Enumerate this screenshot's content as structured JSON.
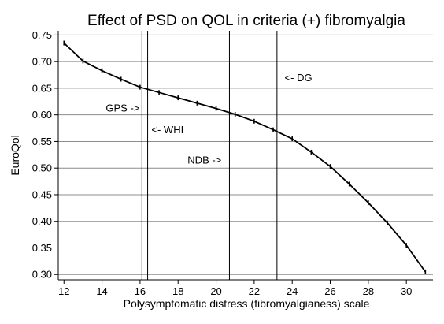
{
  "chart_data": {
    "type": "line",
    "title": "Effect of PSD on QOL in criteria (+) fibromyalgia",
    "xlabel": "Polysymptomatic distress (fibromyalgianess) scale",
    "ylabel": "EuroQol",
    "xlim": [
      11.7,
      31.4
    ],
    "ylim": [
      0.29,
      0.758
    ],
    "xticks": [
      12,
      14,
      16,
      18,
      20,
      22,
      24,
      26,
      28,
      30
    ],
    "xtick_labels": [
      "12",
      "14",
      "16",
      "18",
      "20",
      "22",
      "24",
      "26",
      "28",
      "30"
    ],
    "yticks": [
      0.3,
      0.35,
      0.4,
      0.45,
      0.5,
      0.55,
      0.6,
      0.65,
      0.7,
      0.75
    ],
    "ytick_labels": [
      "0.30",
      "0.35",
      "0.40",
      "0.45",
      "0.50",
      "0.55",
      "0.60",
      "0.65",
      "0.70",
      "0.75"
    ],
    "grid": "horizontal",
    "series": [
      {
        "x": [
          12,
          13,
          14,
          15,
          16,
          17,
          18,
          19,
          20,
          21,
          22,
          23,
          24,
          25,
          26,
          27,
          28,
          29,
          30,
          31
        ],
        "y": [
          0.735,
          0.701,
          0.683,
          0.667,
          0.652,
          0.642,
          0.632,
          0.622,
          0.612,
          0.601,
          0.588,
          0.572,
          0.555,
          0.53,
          0.503,
          0.47,
          0.435,
          0.397,
          0.355,
          0.305
        ],
        "color": "#000000"
      }
    ],
    "vlines": [
      {
        "x": 16.1,
        "label": "GPS ->",
        "label_x": 14.2,
        "label_y": 0.613,
        "anchor": "start"
      },
      {
        "x": 16.4,
        "label": "<- WHI",
        "label_x": 16.6,
        "label_y": 0.572,
        "anchor": "start"
      },
      {
        "x": 20.7,
        "label": "NDB ->",
        "label_x": 18.5,
        "label_y": 0.515,
        "anchor": "start"
      },
      {
        "x": 23.2,
        "label": "<- DG",
        "label_x": 23.6,
        "label_y": 0.67,
        "anchor": "start"
      }
    ]
  }
}
